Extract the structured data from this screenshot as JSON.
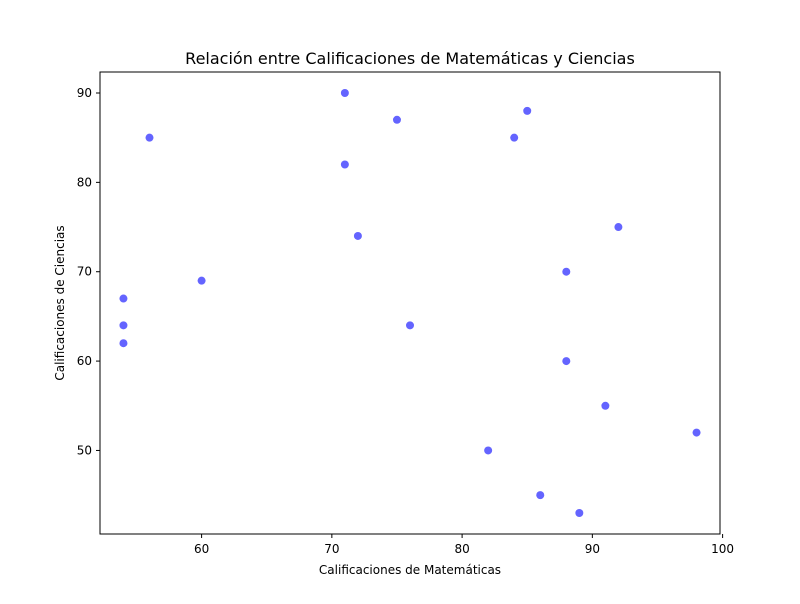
{
  "chart_data": {
    "type": "scatter",
    "title": "Relación entre Calificaciones de Matemáticas y Ciencias",
    "xlabel": "Calificaciones de Matemáticas",
    "ylabel": "Calificaciones de Ciencias",
    "xlim": [
      52.2,
      99.8
    ],
    "ylim": [
      40.65,
      92.35
    ],
    "xticks": [
      60,
      70,
      80,
      90,
      100
    ],
    "yticks": [
      50,
      60,
      70,
      80,
      90
    ],
    "grid": false,
    "legend": "none",
    "colors": {
      "point": "#6464ff",
      "axis": "#000000",
      "background": "#ffffff"
    },
    "points": [
      {
        "x": 71,
        "y": 90
      },
      {
        "x": 85,
        "y": 88
      },
      {
        "x": 75,
        "y": 87
      },
      {
        "x": 56,
        "y": 85
      },
      {
        "x": 84,
        "y": 85
      },
      {
        "x": 71,
        "y": 82
      },
      {
        "x": 92,
        "y": 75
      },
      {
        "x": 72,
        "y": 74
      },
      {
        "x": 88,
        "y": 70
      },
      {
        "x": 60,
        "y": 69
      },
      {
        "x": 54,
        "y": 67
      },
      {
        "x": 54,
        "y": 64
      },
      {
        "x": 76,
        "y": 64
      },
      {
        "x": 54,
        "y": 62
      },
      {
        "x": 88,
        "y": 60
      },
      {
        "x": 91,
        "y": 55
      },
      {
        "x": 98,
        "y": 52
      },
      {
        "x": 82,
        "y": 50
      },
      {
        "x": 86,
        "y": 45
      },
      {
        "x": 89,
        "y": 43
      }
    ]
  }
}
